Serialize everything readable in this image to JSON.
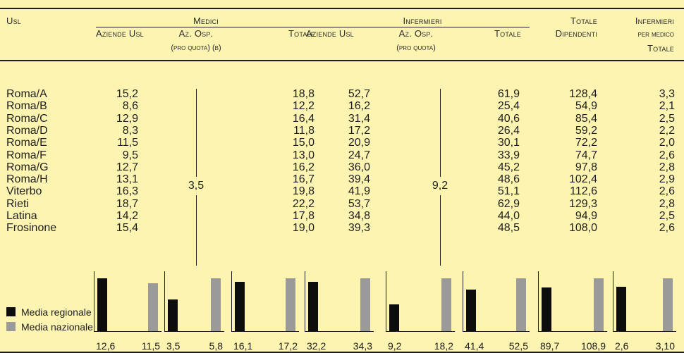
{
  "colors": {
    "background": "#fdf4b2",
    "black_bar": "#0d0d0d",
    "grey_bar": "#9a9a9a",
    "text": "#1e1e1e"
  },
  "header": {
    "usl": "Usl",
    "medici": "Medici",
    "infermieri": "Infermieri",
    "totale_top": "Totale",
    "totale_dip": "Dipendenti",
    "inf_top": "Infermieri",
    "inf_mid": "per medico",
    "inf_bot": "Totale",
    "aziende_usl_m": "Aziende Usl",
    "az_osp_m": "Az. Osp.",
    "pro_quota_m": "(pro quota) (b)",
    "totale_m": "Totale",
    "aziende_usl_i": "Aziende Usl",
    "az_osp_i": "Az. Osp.",
    "pro_quota_i": "(pro quota)",
    "totale_i": "Totale"
  },
  "rows": [
    {
      "name": "Roma/A",
      "m_usl": "15,2",
      "m_tot": "18,8",
      "i_usl": "52,7",
      "i_tot": "61,9",
      "tot_dip": "128,4",
      "inf_med": "3,3"
    },
    {
      "name": "Roma/B",
      "m_usl": "8,6",
      "m_tot": "12,2",
      "i_usl": "16,2",
      "i_tot": "25,4",
      "tot_dip": "54,9",
      "inf_med": "2,1"
    },
    {
      "name": "Roma/C",
      "m_usl": "12,9",
      "m_tot": "16,4",
      "i_usl": "31,4",
      "i_tot": "40,6",
      "tot_dip": "85,4",
      "inf_med": "2,5"
    },
    {
      "name": "Roma/D",
      "m_usl": "8,3",
      "m_tot": "11,8",
      "i_usl": "17,2",
      "i_tot": "26,4",
      "tot_dip": "59,2",
      "inf_med": "2,2"
    },
    {
      "name": "Roma/E",
      "m_usl": "11,5",
      "m_tot": "15,0",
      "i_usl": "20,9",
      "i_tot": "30,1",
      "tot_dip": "72,2",
      "inf_med": "2,0"
    },
    {
      "name": "Roma/F",
      "m_usl": "9,5",
      "m_tot": "13,0",
      "i_usl": "24,7",
      "i_tot": "33,9",
      "tot_dip": "74,7",
      "inf_med": "2,6"
    },
    {
      "name": "Roma/G",
      "m_usl": "12,7",
      "m_tot": "16,2",
      "i_usl": "36,0",
      "i_tot": "45,2",
      "tot_dip": "97,8",
      "inf_med": "2,8"
    },
    {
      "name": "Roma/H",
      "m_usl": "13,1",
      "m_tot": "16,7",
      "i_usl": "39,4",
      "i_tot": "48,6",
      "tot_dip": "102,4",
      "inf_med": "2,9"
    },
    {
      "name": "Viterbo",
      "m_usl": "16,3",
      "m_tot": "19,8",
      "i_usl": "41,9",
      "i_tot": "51,1",
      "tot_dip": "112,6",
      "inf_med": "2,6"
    },
    {
      "name": "Rieti",
      "m_usl": "18,7",
      "m_tot": "22,2",
      "i_usl": "53,7",
      "i_tot": "62,9",
      "tot_dip": "129,3",
      "inf_med": "2,8"
    },
    {
      "name": "Latina",
      "m_usl": "14,2",
      "m_tot": "17,8",
      "i_usl": "34,8",
      "i_tot": "44,0",
      "tot_dip": "94,9",
      "inf_med": "2,5"
    },
    {
      "name": "Frosinone",
      "m_usl": "15,4",
      "m_tot": "19,0",
      "i_usl": "39,3",
      "i_tot": "48,5",
      "tot_dip": "108,0",
      "inf_med": "2,6"
    }
  ],
  "az_osp_m_value": "3,5",
  "az_osp_i_value": "9,2",
  "legend": {
    "regional": "Media regionale",
    "national": "Media nazionale"
  },
  "chart_data": {
    "type": "bar",
    "categories": [
      "Aziende Usl",
      "Az. Osp.",
      "Totale",
      "Aziende Usl",
      "Az. Osp.",
      "Totale",
      "Totale Dipendenti",
      "Infermieri per medico Totale"
    ],
    "series": [
      {
        "name": "Media regionale",
        "values": [
          12.6,
          3.5,
          16.1,
          32.2,
          9.2,
          41.4,
          89.7,
          2.6
        ]
      },
      {
        "name": "Media nazionale",
        "values": [
          11.5,
          5.8,
          17.2,
          34.3,
          18.2,
          52.5,
          108.9,
          3.1
        ]
      }
    ],
    "labels_regional": [
      "12,6",
      "3,5",
      "16,1",
      "32,2",
      "9,2",
      "41,4",
      "89,7",
      "2,6"
    ],
    "labels_national": [
      "11,5",
      "5,8",
      "17,2",
      "34,3",
      "18,2",
      "52,5",
      "108,9",
      "3,10"
    ]
  }
}
